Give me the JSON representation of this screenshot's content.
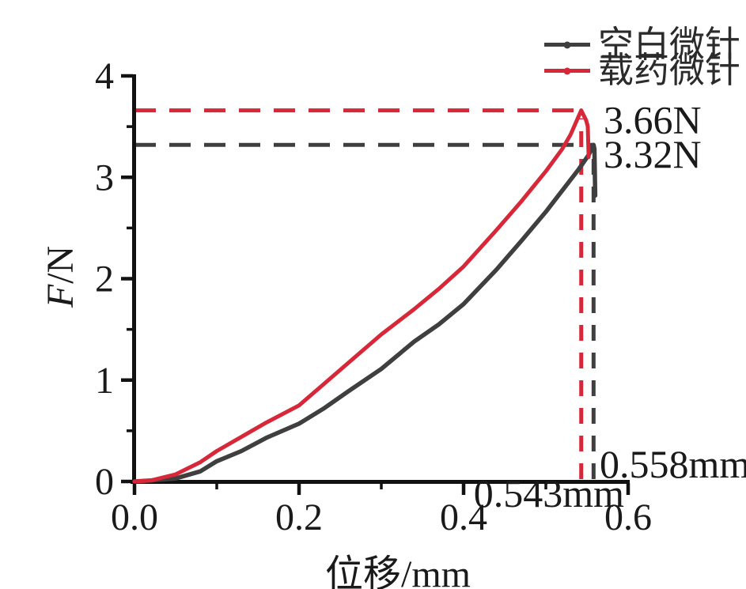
{
  "chart_data": {
    "type": "line",
    "title": "",
    "xlabel": "位移/mm",
    "ylabel": "F/N",
    "ylabel_italic": "F",
    "ylabel_rest": "/N",
    "xlim": [
      0,
      0.6
    ],
    "ylim": [
      0,
      4
    ],
    "grid": false,
    "legend_position": "top-right",
    "axis_color": "#111111",
    "x_major_ticks": {
      "values": [
        0,
        0.2,
        0.4,
        0.6
      ],
      "labels": [
        "0.0",
        "0.2",
        "0.4",
        "0.6"
      ]
    },
    "x_minor_ticks": [
      0.1,
      0.3,
      0.5
    ],
    "y_major_ticks": {
      "values": [
        0,
        1,
        2,
        3,
        4
      ],
      "labels": [
        "0",
        "1",
        "2",
        "3",
        "4"
      ]
    },
    "y_minor_ticks": [
      0.5,
      1.5,
      2.5,
      3.5
    ],
    "series": [
      {
        "key": "blank-microneedle",
        "name": "空白微针",
        "color": "#3f3f3f",
        "peak": {
          "x": 0.558,
          "y": 3.32
        },
        "peak_force_label": "3.32N",
        "peak_displacement_label": "0.558mm",
        "points": [
          [
            0.0,
            0.0
          ],
          [
            0.02,
            0.01
          ],
          [
            0.05,
            0.03
          ],
          [
            0.08,
            0.1
          ],
          [
            0.1,
            0.2
          ],
          [
            0.13,
            0.3
          ],
          [
            0.16,
            0.43
          ],
          [
            0.2,
            0.57
          ],
          [
            0.23,
            0.72
          ],
          [
            0.26,
            0.89
          ],
          [
            0.3,
            1.11
          ],
          [
            0.34,
            1.38
          ],
          [
            0.37,
            1.55
          ],
          [
            0.4,
            1.75
          ],
          [
            0.44,
            2.09
          ],
          [
            0.47,
            2.37
          ],
          [
            0.5,
            2.66
          ],
          [
            0.52,
            2.87
          ],
          [
            0.54,
            3.08
          ],
          [
            0.552,
            3.22
          ],
          [
            0.558,
            3.32
          ],
          [
            0.559,
            3.28
          ],
          [
            0.56,
            2.82
          ]
        ]
      },
      {
        "key": "drug-loaded-microneedle",
        "name": "载药微针",
        "color": "#d7283a",
        "peak": {
          "x": 0.543,
          "y": 3.66
        },
        "peak_force_label": "3.66N",
        "peak_displacement_label": "0.543mm",
        "points": [
          [
            0.0,
            0.0
          ],
          [
            0.02,
            0.01
          ],
          [
            0.05,
            0.07
          ],
          [
            0.08,
            0.19
          ],
          [
            0.1,
            0.3
          ],
          [
            0.13,
            0.44
          ],
          [
            0.16,
            0.58
          ],
          [
            0.2,
            0.75
          ],
          [
            0.23,
            0.96
          ],
          [
            0.26,
            1.17
          ],
          [
            0.3,
            1.45
          ],
          [
            0.34,
            1.7
          ],
          [
            0.37,
            1.9
          ],
          [
            0.4,
            2.12
          ],
          [
            0.44,
            2.48
          ],
          [
            0.47,
            2.76
          ],
          [
            0.5,
            3.06
          ],
          [
            0.52,
            3.28
          ],
          [
            0.53,
            3.42
          ],
          [
            0.543,
            3.66
          ],
          [
            0.549,
            3.56
          ],
          [
            0.551,
            3.5
          ],
          [
            0.552,
            3.2
          ]
        ]
      }
    ]
  }
}
